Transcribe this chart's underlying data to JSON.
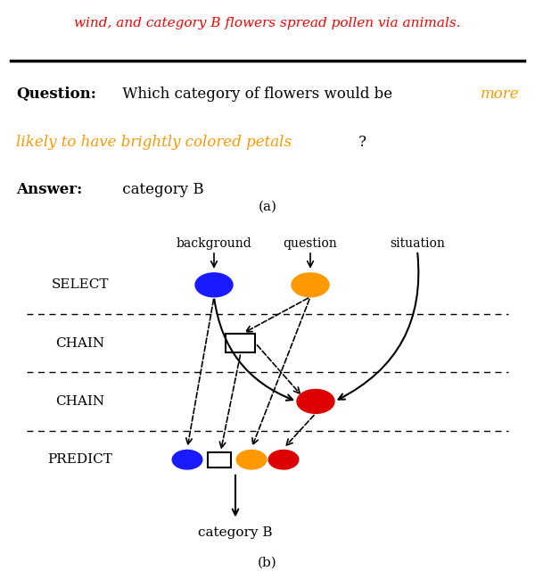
{
  "top_text_red": "wind, and category B flowers spread pollen via animals.",
  "question_label": "Question:",
  "question_text_black": " Which category of flowers would be ",
  "question_text_orange": "more\nlikely to have brightly colored petals",
  "question_text_black2": "?",
  "answer_label": "Answer:",
  "answer_text": " category B",
  "label_a": "(a)",
  "label_b": "(b)",
  "row_labels": [
    "Select",
    "Chain",
    "Chain",
    "Predict"
  ],
  "col_labels": [
    "background",
    "question",
    "situation"
  ],
  "output_text": "category B",
  "blue_color": "#1a1aff",
  "orange_color": "#ff9900",
  "red_color": "#dd0000",
  "background_color": "#ffffff"
}
